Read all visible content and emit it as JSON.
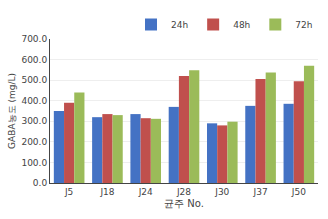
{
  "chart_data": {
    "type": "bar",
    "categories": [
      "J5",
      "J18",
      "J24",
      "J28",
      "J30",
      "J37",
      "J50"
    ],
    "series": [
      {
        "name": "24h",
        "color": "#4472C4",
        "values": [
          350,
          320,
          335,
          370,
          290,
          375,
          385
        ]
      },
      {
        "name": "48h",
        "color": "#C0504D",
        "values": [
          390,
          335,
          315,
          520,
          280,
          505,
          495
        ]
      },
      {
        "name": "72h",
        "color": "#9BBB59",
        "values": [
          440,
          330,
          312,
          548,
          298,
          537,
          570
        ]
      }
    ],
    "xlabel": "균주 No.",
    "ylabel": "GABA농도 (mg/L)",
    "ylim": [
      0,
      700
    ],
    "yticks": [
      {
        "value": 0,
        "label": "0.0"
      },
      {
        "value": 100,
        "label": "100.0"
      },
      {
        "value": 200,
        "label": "200.0"
      },
      {
        "value": 300,
        "label": "300.0"
      },
      {
        "value": 400,
        "label": "400.0"
      },
      {
        "value": 500,
        "label": "500.0"
      },
      {
        "value": 600,
        "label": "600.0"
      },
      {
        "value": 700,
        "label": "700.0"
      }
    ],
    "grid": true,
    "legend": "upper right"
  }
}
